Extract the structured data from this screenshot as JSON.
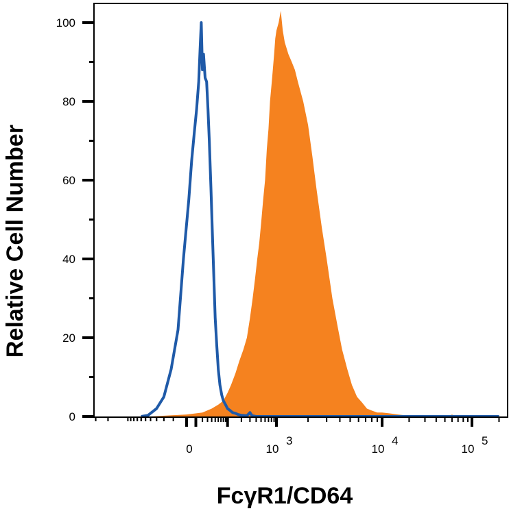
{
  "chart_data": {
    "type": "area",
    "xlabel": "FcγR1/CD64",
    "ylabel": "Relative Cell Number",
    "x_scale": "biexponential",
    "ylim": [
      0,
      100
    ],
    "y_ticks": [
      {
        "value": 0,
        "label": "0"
      },
      {
        "value": 20,
        "label": "20"
      },
      {
        "value": 40,
        "label": "40"
      },
      {
        "value": 60,
        "label": "60"
      },
      {
        "value": 80,
        "label": "80"
      },
      {
        "value": 100,
        "label": "100"
      }
    ],
    "x_ticks": [
      {
        "value": 0,
        "base": "0",
        "exp": ""
      },
      {
        "value": 1000,
        "base": "10",
        "exp": "3"
      },
      {
        "value": 10000,
        "base": "10",
        "exp": "4"
      },
      {
        "value": 100000,
        "base": "10",
        "exp": "5"
      }
    ],
    "series": [
      {
        "style": "filled",
        "color": "#f5821f",
        "points": [
          [
            -40,
            0
          ],
          [
            0,
            0.5
          ],
          [
            20,
            1
          ],
          [
            40,
            2
          ],
          [
            60,
            3
          ],
          [
            80,
            4
          ],
          [
            100,
            6
          ],
          [
            120,
            8
          ],
          [
            150,
            11
          ],
          [
            180,
            14
          ],
          [
            220,
            17
          ],
          [
            260,
            20
          ],
          [
            300,
            25
          ],
          [
            340,
            30
          ],
          [
            380,
            35
          ],
          [
            420,
            40
          ],
          [
            460,
            44
          ],
          [
            500,
            49
          ],
          [
            550,
            55
          ],
          [
            600,
            60
          ],
          [
            650,
            68
          ],
          [
            700,
            73
          ],
          [
            750,
            80
          ],
          [
            800,
            84
          ],
          [
            850,
            88
          ],
          [
            900,
            92
          ],
          [
            950,
            96
          ],
          [
            1000,
            98
          ],
          [
            1050,
            100
          ],
          [
            1100,
            103
          ],
          [
            1150,
            98
          ],
          [
            1200,
            95
          ],
          [
            1300,
            92
          ],
          [
            1400,
            90
          ],
          [
            1500,
            88
          ],
          [
            1600,
            85
          ],
          [
            1800,
            80
          ],
          [
            2000,
            74
          ],
          [
            2200,
            66
          ],
          [
            2400,
            58
          ],
          [
            2700,
            48
          ],
          [
            3000,
            40
          ],
          [
            3400,
            30
          ],
          [
            3800,
            23
          ],
          [
            4200,
            17
          ],
          [
            4700,
            12
          ],
          [
            5200,
            8
          ],
          [
            5800,
            5
          ],
          [
            6500,
            3.5
          ],
          [
            7200,
            2
          ],
          [
            8000,
            1.5
          ],
          [
            9000,
            1
          ],
          [
            10000,
            1
          ],
          [
            12000,
            0.8
          ],
          [
            15000,
            0.5
          ],
          [
            18000,
            0.3
          ],
          [
            22000,
            0.1
          ],
          [
            30000,
            0
          ],
          [
            55000,
            0
          ],
          [
            60000,
            0.5
          ],
          [
            65000,
            0
          ],
          [
            200000,
            0
          ]
        ]
      },
      {
        "style": "line",
        "color": "#1f5aa8",
        "points": [
          [
            -60,
            0
          ],
          [
            -45,
            0.3
          ],
          [
            -30,
            2
          ],
          [
            -20,
            5
          ],
          [
            -12,
            12
          ],
          [
            -6,
            22
          ],
          [
            -2,
            40
          ],
          [
            2,
            55
          ],
          [
            5,
            65
          ],
          [
            8,
            72
          ],
          [
            11,
            78
          ],
          [
            14,
            85
          ],
          [
            16,
            93
          ],
          [
            18,
            100
          ],
          [
            20,
            88
          ],
          [
            22,
            92
          ],
          [
            25,
            86
          ],
          [
            28,
            85
          ],
          [
            31,
            78
          ],
          [
            34,
            70
          ],
          [
            38,
            58
          ],
          [
            42,
            46
          ],
          [
            46,
            35
          ],
          [
            50,
            25
          ],
          [
            55,
            18
          ],
          [
            60,
            12
          ],
          [
            66,
            8
          ],
          [
            73,
            5.5
          ],
          [
            80,
            4
          ],
          [
            90,
            3
          ],
          [
            100,
            2
          ],
          [
            115,
            1.5
          ],
          [
            130,
            1
          ],
          [
            150,
            0.8
          ],
          [
            170,
            0.5
          ],
          [
            200,
            0.3
          ],
          [
            260,
            0.2
          ],
          [
            300,
            1
          ],
          [
            330,
            0.2
          ],
          [
            400,
            0
          ],
          [
            200000,
            0
          ]
        ]
      }
    ]
  }
}
